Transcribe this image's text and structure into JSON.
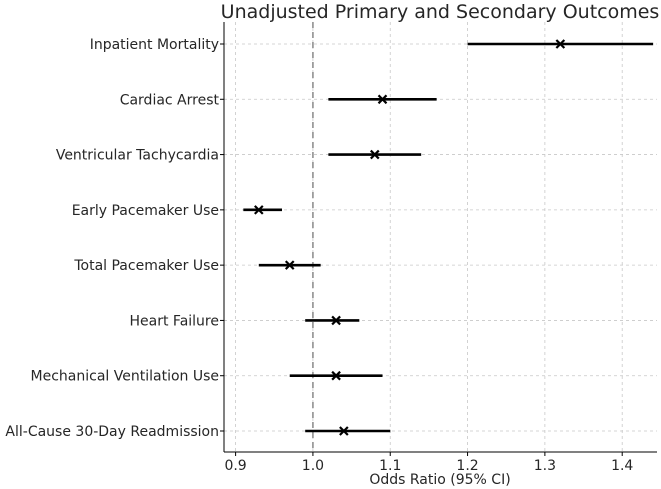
{
  "chart_data": {
    "type": "forest",
    "title": "Unadjusted Primary and Secondary Outcomes",
    "xlabel": "Odds Ratio (95% CI)",
    "ylabel": "",
    "xlim": [
      0.885,
      1.445
    ],
    "xticks": [
      0.9,
      1.0,
      1.1,
      1.2,
      1.3,
      1.4
    ],
    "xtick_labels": [
      "0.9",
      "1.0",
      "1.1",
      "1.2",
      "1.3",
      "1.4"
    ],
    "reference_line": 1.0,
    "grid": true,
    "outcomes": [
      {
        "label": "Inpatient Mortality",
        "or": 1.32,
        "ci_low": 1.2,
        "ci_high": 1.44
      },
      {
        "label": "Cardiac Arrest",
        "or": 1.09,
        "ci_low": 1.02,
        "ci_high": 1.16
      },
      {
        "label": "Ventricular Tachycardia",
        "or": 1.08,
        "ci_low": 1.02,
        "ci_high": 1.14
      },
      {
        "label": "Early Pacemaker Use",
        "or": 0.93,
        "ci_low": 0.91,
        "ci_high": 0.96
      },
      {
        "label": "Total Pacemaker Use",
        "or": 0.97,
        "ci_low": 0.93,
        "ci_high": 1.01
      },
      {
        "label": "Heart Failure",
        "or": 1.03,
        "ci_low": 0.99,
        "ci_high": 1.06
      },
      {
        "label": "Mechanical Ventilation Use",
        "or": 1.03,
        "ci_low": 0.97,
        "ci_high": 1.09
      },
      {
        "label": "All-Cause 30-Day Readmission",
        "or": 1.04,
        "ci_low": 0.99,
        "ci_high": 1.1
      }
    ],
    "colors": {
      "marker": "#000000",
      "ci": "#000000",
      "reference": "#808080",
      "grid": "#c8c8c8"
    }
  }
}
